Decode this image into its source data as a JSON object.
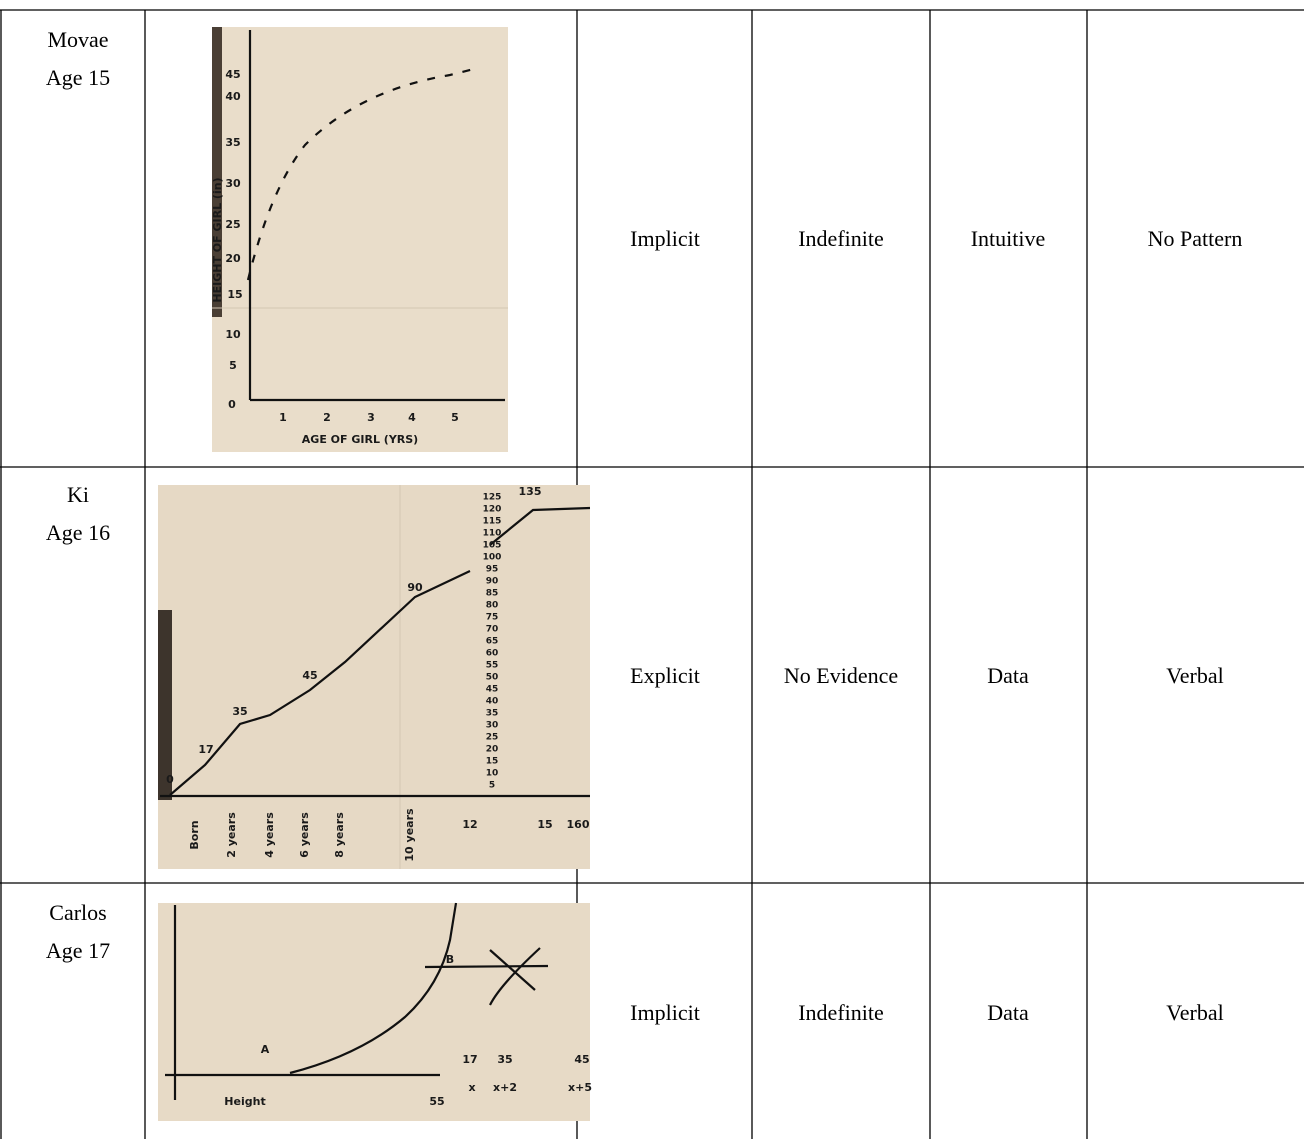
{
  "table": {
    "rows": [
      {
        "name": "Movae",
        "age": "Age 15",
        "cells": [
          "Implicit",
          "Indefinite",
          "Intuitive",
          "No Pattern"
        ]
      },
      {
        "name": "Ki",
        "age": "Age 16",
        "cells": [
          "Explicit",
          "No Evidence",
          "Data",
          "Verbal"
        ]
      },
      {
        "name": "Carlos",
        "age": "Age 17",
        "cells": [
          "Implicit",
          "Indefinite",
          "Data",
          "Verbal"
        ]
      }
    ]
  },
  "sketches": [
    {
      "labels": [
        "45",
        "40",
        "35",
        "30",
        "25",
        "20",
        "15",
        "10",
        "5",
        "0",
        "1",
        "2",
        "3",
        "4",
        "5",
        "HEIGHT OF GIRL (in)",
        "AGE OF GIRL (YRS)"
      ]
    },
    {
      "labels": [
        "0",
        "17",
        "35",
        "45",
        "90",
        "135",
        "Born",
        "2 years",
        "4 years",
        "6 years",
        "8 years",
        "10 years",
        "12",
        "15",
        "160"
      ],
      "scale": [
        "125",
        "120",
        "115",
        "110",
        "105",
        "100",
        "95",
        "90",
        "85",
        "80",
        "75",
        "70",
        "65",
        "60",
        "55",
        "50",
        "45",
        "40",
        "35",
        "30",
        "25",
        "20",
        "15",
        "10",
        "5"
      ]
    },
    {
      "labels": [
        "A",
        "B",
        "Height",
        "55",
        "17",
        "35",
        "45",
        "x",
        "x+2",
        "x+5"
      ]
    }
  ]
}
